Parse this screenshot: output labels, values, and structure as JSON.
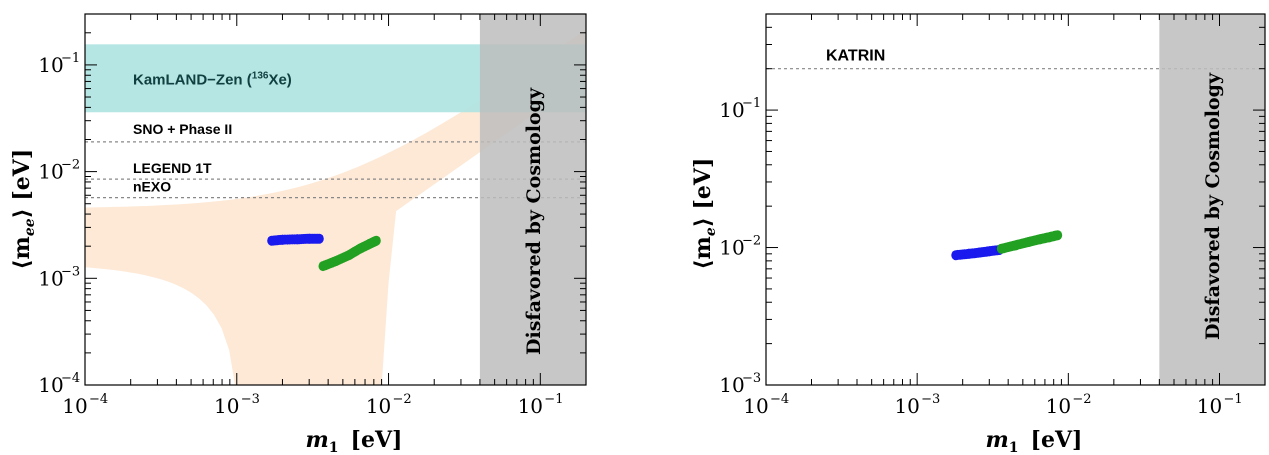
{
  "colors": {
    "band": "#fde9d6",
    "kamland": "#aee3e1",
    "cosmology": "#bdbdbd",
    "blue": "#1a1aee",
    "green": "#22a022",
    "line": "#888888"
  },
  "chart_data": [
    {
      "type": "scatter",
      "title": "",
      "xlabel_main": "m",
      "xlabel_sub": "1",
      "xlabel_unit": "[eV]",
      "ylabel_text": "⟨m",
      "ylabel_sub": "ee",
      "ylabel_unit": "⟩ [eV]",
      "x_scale": "log",
      "y_scale": "log",
      "xlim": [
        0.0001,
        0.2
      ],
      "ylim": [
        0.0001,
        0.3
      ],
      "x_ticks": [
        {
          "base": "10",
          "exp": "−4",
          "value": 0.0001
        },
        {
          "base": "10",
          "exp": "−3",
          "value": 0.001
        },
        {
          "base": "10",
          "exp": "−2",
          "value": 0.01
        },
        {
          "base": "10",
          "exp": "−1",
          "value": 0.1
        }
      ],
      "y_ticks": [
        {
          "base": "10",
          "exp": "−4",
          "value": 0.0001
        },
        {
          "base": "10",
          "exp": "−3",
          "value": 0.001
        },
        {
          "base": "10",
          "exp": "−2",
          "value": 0.01
        },
        {
          "base": "10",
          "exp": "−1",
          "value": 0.1
        }
      ],
      "kamland": {
        "label": "KamLAND−Zen (",
        "isotope_mass": "136",
        "isotope": "Xe)",
        "y_range": [
          0.036,
          0.156
        ]
      },
      "limits": [
        {
          "label": "SNO + Phase II",
          "value": 0.019
        },
        {
          "label": "LEGEND 1T",
          "value": 0.0085
        },
        {
          "label": "nEXO",
          "value": 0.0057
        }
      ],
      "cosmology": {
        "label": "Disfavored by Cosmology",
        "x_min": 0.04
      },
      "series": [
        {
          "color": "blue",
          "points": [
            [
              0.0017,
              0.00225
            ],
            [
              0.002,
              0.0023
            ],
            [
              0.0025,
              0.00232
            ],
            [
              0.003,
              0.00235
            ],
            [
              0.0035,
              0.00235
            ]
          ]
        },
        {
          "color": "green",
          "points": [
            [
              0.0037,
              0.0013
            ],
            [
              0.0045,
              0.00145
            ],
            [
              0.0055,
              0.00165
            ],
            [
              0.0065,
              0.0019
            ],
            [
              0.0075,
              0.0021
            ],
            [
              0.0083,
              0.00225
            ]
          ]
        }
      ]
    },
    {
      "type": "scatter",
      "title": "",
      "xlabel_main": "m",
      "xlabel_sub": "1",
      "xlabel_unit": "[eV]",
      "ylabel_text": "⟨m",
      "ylabel_sub": "e",
      "ylabel_unit": "⟩ [eV]",
      "x_scale": "log",
      "y_scale": "log",
      "xlim": [
        0.0001,
        0.2
      ],
      "ylim": [
        0.001,
        0.5
      ],
      "x_ticks": [
        {
          "base": "10",
          "exp": "−4",
          "value": 0.0001
        },
        {
          "base": "10",
          "exp": "−3",
          "value": 0.001
        },
        {
          "base": "10",
          "exp": "−2",
          "value": 0.01
        },
        {
          "base": "10",
          "exp": "−1",
          "value": 0.1
        }
      ],
      "y_ticks": [
        {
          "base": "10",
          "exp": "−3",
          "value": 0.001
        },
        {
          "base": "10",
          "exp": "−2",
          "value": 0.01
        },
        {
          "base": "10",
          "exp": "−1",
          "value": 0.1
        }
      ],
      "limits": [
        {
          "label": "KATRIN",
          "value": 0.2
        }
      ],
      "cosmology": {
        "label": "Disfavored by Cosmology",
        "x_min": 0.04
      },
      "series": [
        {
          "color": "blue",
          "points": [
            [
              0.0018,
              0.0088
            ],
            [
              0.0022,
              0.009
            ],
            [
              0.0026,
              0.0092
            ],
            [
              0.003,
              0.0094
            ],
            [
              0.0035,
              0.0096
            ]
          ]
        },
        {
          "color": "green",
          "points": [
            [
              0.0036,
              0.0098
            ],
            [
              0.0045,
              0.0104
            ],
            [
              0.0055,
              0.011
            ],
            [
              0.0065,
              0.0115
            ],
            [
              0.0075,
              0.0119
            ],
            [
              0.0085,
              0.0123
            ]
          ]
        }
      ]
    }
  ]
}
